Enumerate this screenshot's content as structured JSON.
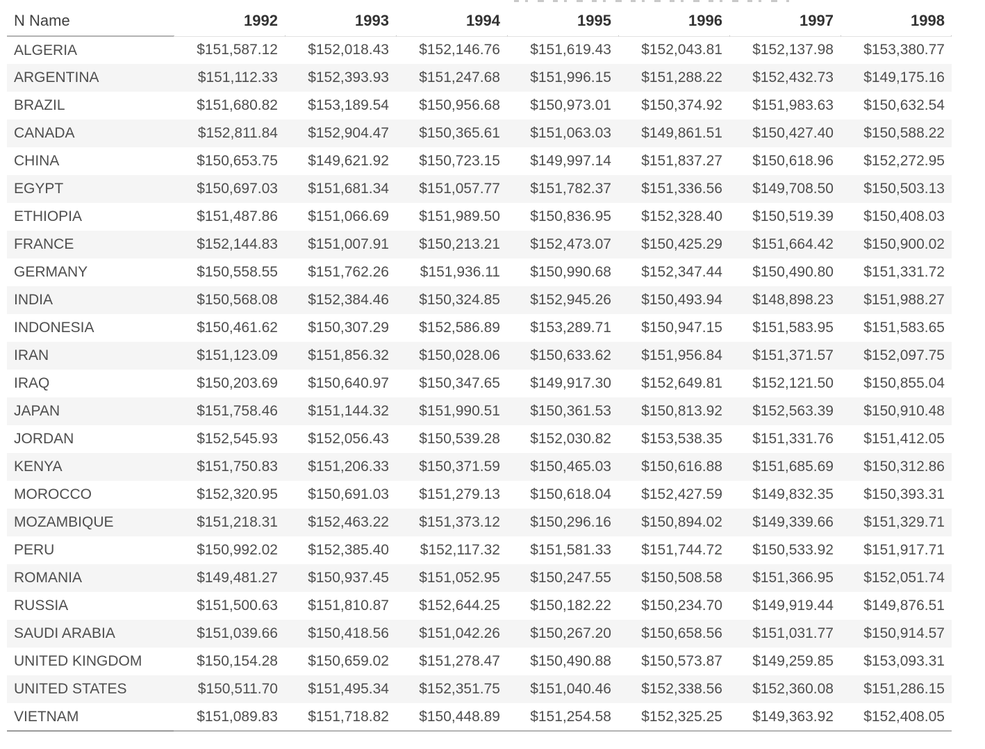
{
  "colors": {
    "stripe": "#f5f5f5",
    "value_text": "#4e4e4e",
    "header_text": "#333333",
    "header_rule_dark": "#b2b2b2",
    "header_rule_light": "#e3e3e3",
    "bottom_rule": "#b3b3b3"
  },
  "chart_data": {
    "type": "table",
    "title": "",
    "columns": [
      "N Name",
      "1992",
      "1993",
      "1994",
      "1995",
      "1996",
      "1997",
      "1998"
    ],
    "rows": [
      [
        "ALGERIA",
        "$151,587.12",
        "$152,018.43",
        "$152,146.76",
        "$151,619.43",
        "$152,043.81",
        "$152,137.98",
        "$153,380.77"
      ],
      [
        "ARGENTINA",
        "$151,112.33",
        "$152,393.93",
        "$151,247.68",
        "$151,996.15",
        "$151,288.22",
        "$152,432.73",
        "$149,175.16"
      ],
      [
        "BRAZIL",
        "$151,680.82",
        "$153,189.54",
        "$150,956.68",
        "$150,973.01",
        "$150,374.92",
        "$151,983.63",
        "$150,632.54"
      ],
      [
        "CANADA",
        "$152,811.84",
        "$152,904.47",
        "$150,365.61",
        "$151,063.03",
        "$149,861.51",
        "$150,427.40",
        "$150,588.22"
      ],
      [
        "CHINA",
        "$150,653.75",
        "$149,621.92",
        "$150,723.15",
        "$149,997.14",
        "$151,837.27",
        "$150,618.96",
        "$152,272.95"
      ],
      [
        "EGYPT",
        "$150,697.03",
        "$151,681.34",
        "$151,057.77",
        "$151,782.37",
        "$151,336.56",
        "$149,708.50",
        "$150,503.13"
      ],
      [
        "ETHIOPIA",
        "$151,487.86",
        "$151,066.69",
        "$151,989.50",
        "$150,836.95",
        "$152,328.40",
        "$150,519.39",
        "$150,408.03"
      ],
      [
        "FRANCE",
        "$152,144.83",
        "$151,007.91",
        "$150,213.21",
        "$152,473.07",
        "$150,425.29",
        "$151,664.42",
        "$150,900.02"
      ],
      [
        "GERMANY",
        "$150,558.55",
        "$151,762.26",
        "$151,936.11",
        "$150,990.68",
        "$152,347.44",
        "$150,490.80",
        "$151,331.72"
      ],
      [
        "INDIA",
        "$150,568.08",
        "$152,384.46",
        "$150,324.85",
        "$152,945.26",
        "$150,493.94",
        "$148,898.23",
        "$151,988.27"
      ],
      [
        "INDONESIA",
        "$150,461.62",
        "$150,307.29",
        "$152,586.89",
        "$153,289.71",
        "$150,947.15",
        "$151,583.95",
        "$151,583.65"
      ],
      [
        "IRAN",
        "$151,123.09",
        "$151,856.32",
        "$150,028.06",
        "$150,633.62",
        "$151,956.84",
        "$151,371.57",
        "$152,097.75"
      ],
      [
        "IRAQ",
        "$150,203.69",
        "$150,640.97",
        "$150,347.65",
        "$149,917.30",
        "$152,649.81",
        "$152,121.50",
        "$150,855.04"
      ],
      [
        "JAPAN",
        "$151,758.46",
        "$151,144.32",
        "$151,990.51",
        "$150,361.53",
        "$150,813.92",
        "$152,563.39",
        "$150,910.48"
      ],
      [
        "JORDAN",
        "$152,545.93",
        "$152,056.43",
        "$150,539.28",
        "$152,030.82",
        "$153,538.35",
        "$151,331.76",
        "$151,412.05"
      ],
      [
        "KENYA",
        "$151,750.83",
        "$151,206.33",
        "$150,371.59",
        "$150,465.03",
        "$150,616.88",
        "$151,685.69",
        "$150,312.86"
      ],
      [
        "MOROCCO",
        "$152,320.95",
        "$150,691.03",
        "$151,279.13",
        "$150,618.04",
        "$152,427.59",
        "$149,832.35",
        "$150,393.31"
      ],
      [
        "MOZAMBIQUE",
        "$151,218.31",
        "$152,463.22",
        "$151,373.12",
        "$150,296.16",
        "$150,894.02",
        "$149,339.66",
        "$151,329.71"
      ],
      [
        "PERU",
        "$150,992.02",
        "$152,385.40",
        "$152,117.32",
        "$151,581.33",
        "$151,744.72",
        "$150,533.92",
        "$151,917.71"
      ],
      [
        "ROMANIA",
        "$149,481.27",
        "$150,937.45",
        "$151,052.95",
        "$150,247.55",
        "$150,508.58",
        "$151,366.95",
        "$152,051.74"
      ],
      [
        "RUSSIA",
        "$151,500.63",
        "$151,810.87",
        "$152,644.25",
        "$150,182.22",
        "$150,234.70",
        "$149,919.44",
        "$149,876.51"
      ],
      [
        "SAUDI ARABIA",
        "$151,039.66",
        "$150,418.56",
        "$151,042.26",
        "$150,267.20",
        "$150,658.56",
        "$151,031.77",
        "$150,914.57"
      ],
      [
        "UNITED KINGDOM",
        "$150,154.28",
        "$150,659.02",
        "$151,278.47",
        "$150,490.88",
        "$150,573.87",
        "$149,259.85",
        "$153,093.31"
      ],
      [
        "UNITED STATES",
        "$150,511.70",
        "$151,495.34",
        "$152,351.75",
        "$151,040.46",
        "$152,338.56",
        "$152,360.08",
        "$151,286.15"
      ],
      [
        "VIETNAM",
        "$151,089.83",
        "$151,718.82",
        "$150,448.89",
        "$151,254.58",
        "$152,325.25",
        "$149,363.92",
        "$152,408.05"
      ]
    ]
  }
}
